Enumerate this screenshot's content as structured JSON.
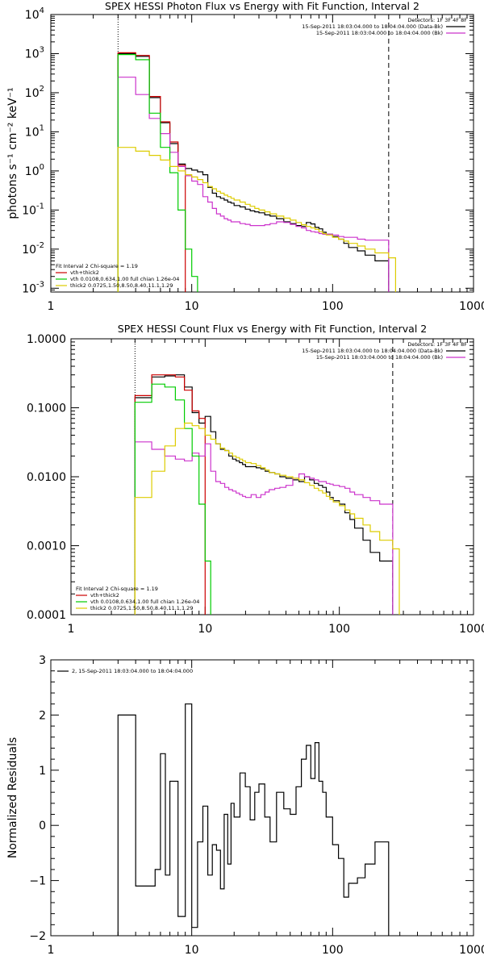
{
  "chart_data": [
    {
      "type": "line",
      "step": true,
      "title": "SPEX HESSI Photon Flux vs Energy with Fit Function, Interval 2",
      "xlabel": "",
      "ylabel": "photons s⁻¹ cm⁻² keV⁻¹",
      "xscale": "log",
      "yscale": "log",
      "xlim": [
        1,
        1000
      ],
      "ylim": [
        0.0008,
        10000
      ],
      "xticks": [
        {
          "v": 1,
          "label": "1"
        },
        {
          "v": 10,
          "label": "10"
        },
        {
          "v": 100,
          "label": "100"
        },
        {
          "v": 1000,
          "label": "1000"
        }
      ],
      "yticks": [
        {
          "v": 0.001,
          "base": "10",
          "exp": "-3"
        },
        {
          "v": 0.01,
          "base": "10",
          "exp": "-2"
        },
        {
          "v": 0.1,
          "base": "10",
          "exp": "-1"
        },
        {
          "v": 1,
          "base": "10",
          "exp": "0"
        },
        {
          "v": 10,
          "base": "10",
          "exp": "1"
        },
        {
          "v": 100,
          "base": "10",
          "exp": "2"
        },
        {
          "v": 1000,
          "base": "10",
          "exp": "3"
        },
        {
          "v": 10000,
          "base": "10",
          "exp": "4"
        }
      ],
      "vlines": [
        {
          "x": 3,
          "style": "dotted"
        },
        {
          "x": 250,
          "style": "dashed"
        }
      ],
      "legend_top_right": [
        {
          "text": "Detectors: 1F 3F 4F 8F",
          "color": ""
        },
        {
          "text": "15-Sep-2011 18:03:04.000 to 18:04:04.000 (Data-Bk)",
          "color": "#000000"
        },
        {
          "text": "15-Sep-2011 18:03:04.000 to 18:04:04.000 (Bk)",
          "color": "#cc33cc"
        }
      ],
      "legend_bottom_left": [
        {
          "text": "Fit Interval 2   Chi-square = 1.19",
          "color": ""
        },
        {
          "text": "vth+thick2",
          "color": "#cc0000"
        },
        {
          "text": "vth 0.0108,0.634,1.00  full chian 1.26e-04",
          "color": "#00cc00"
        },
        {
          "text": "thick2 0.0725,1.50,8.50,8.40,11.1,1.29",
          "color": "#ddcc00"
        }
      ],
      "series": [
        {
          "color": "#000000",
          "edges": [
            3,
            4,
            5,
            6,
            7,
            8,
            9,
            10,
            11,
            12,
            13,
            14,
            15,
            16,
            17,
            18,
            19,
            20,
            22,
            24,
            26,
            28,
            30,
            33,
            36,
            40,
            45,
            50,
            55,
            60,
            65,
            70,
            75,
            80,
            85,
            90,
            100,
            110,
            120,
            130,
            150,
            170,
            200,
            250
          ],
          "values": [
            1000,
            850,
            75,
            17,
            5.0,
            1.5,
            1.15,
            1.05,
            0.95,
            0.8,
            0.38,
            0.27,
            0.22,
            0.2,
            0.18,
            0.16,
            0.15,
            0.13,
            0.12,
            0.105,
            0.095,
            0.09,
            0.085,
            0.075,
            0.07,
            0.06,
            0.05,
            0.045,
            0.04,
            0.038,
            0.048,
            0.044,
            0.036,
            0.033,
            0.027,
            0.024,
            0.021,
            0.018,
            0.014,
            0.011,
            0.009,
            0.007,
            0.005
          ]
        },
        {
          "color": "#cc0000",
          "edges": [
            3,
            4,
            5,
            6,
            7,
            8,
            9
          ],
          "values": [
            1050,
            900,
            80,
            18,
            5.5,
            1.4
          ]
        },
        {
          "color": "#cc33cc",
          "edges": [
            3,
            4,
            5,
            6,
            7,
            8,
            9,
            10,
            11,
            12,
            13,
            14,
            15,
            16,
            17,
            18,
            19,
            20,
            22,
            24,
            26,
            28,
            30,
            33,
            36,
            40,
            45,
            50,
            55,
            60,
            65,
            70,
            75,
            80,
            85,
            90,
            100,
            110,
            120,
            130,
            150,
            170,
            200,
            250
          ],
          "values": [
            250,
            90,
            22,
            9,
            3.0,
            1.3,
            0.75,
            0.55,
            0.45,
            0.22,
            0.16,
            0.11,
            0.08,
            0.07,
            0.06,
            0.055,
            0.05,
            0.05,
            0.045,
            0.043,
            0.04,
            0.04,
            0.04,
            0.042,
            0.045,
            0.05,
            0.048,
            0.043,
            0.038,
            0.035,
            0.03,
            0.028,
            0.027,
            0.025,
            0.024,
            0.024,
            0.023,
            0.021,
            0.02,
            0.02,
            0.018,
            0.017,
            0.017
          ]
        },
        {
          "color": "#00cc00",
          "edges": [
            3,
            4,
            5,
            6,
            7,
            8,
            9,
            10,
            11
          ],
          "values": [
            950,
            700,
            30,
            4.0,
            0.9,
            0.1,
            0.01,
            0.002
          ]
        },
        {
          "color": "#ddcc00",
          "edges": [
            3,
            4,
            5,
            6,
            7,
            8,
            9,
            10,
            11,
            12,
            13,
            14,
            15,
            16,
            17,
            18,
            19,
            20,
            22,
            24,
            26,
            28,
            30,
            33,
            36,
            40,
            45,
            50,
            55,
            60,
            65,
            70,
            75,
            80,
            85,
            90,
            100,
            110,
            120,
            130,
            150,
            170,
            200,
            250,
            280
          ],
          "values": [
            4.0,
            3.2,
            2.5,
            1.9,
            1.3,
            1.0,
            0.8,
            0.7,
            0.6,
            0.5,
            0.4,
            0.35,
            0.3,
            0.27,
            0.24,
            0.22,
            0.2,
            0.18,
            0.16,
            0.14,
            0.125,
            0.11,
            0.1,
            0.09,
            0.08,
            0.07,
            0.062,
            0.055,
            0.048,
            0.042,
            0.038,
            0.035,
            0.032,
            0.028,
            0.025,
            0.023,
            0.02,
            0.018,
            0.016,
            0.014,
            0.012,
            0.01,
            0.008,
            0.006
          ]
        }
      ]
    },
    {
      "type": "line",
      "step": true,
      "title": "SPEX HESSI Count Flux vs Energy with Fit Function, Interval 2",
      "xlabel": "",
      "ylabel": "",
      "xscale": "log",
      "yscale": "log",
      "xlim": [
        1,
        1000
      ],
      "ylim": [
        0.0001,
        1.0
      ],
      "xticks": [
        {
          "v": 1,
          "label": "1"
        },
        {
          "v": 10,
          "label": "10"
        },
        {
          "v": 100,
          "label": "100"
        },
        {
          "v": 1000,
          "label": "1000"
        }
      ],
      "yticks": [
        {
          "v": 0.0001,
          "label": "0.0001"
        },
        {
          "v": 0.001,
          "label": "0.0010"
        },
        {
          "v": 0.01,
          "label": "0.0100"
        },
        {
          "v": 0.1,
          "label": "0.1000"
        },
        {
          "v": 1.0,
          "label": "1.0000"
        }
      ],
      "vlines": [
        {
          "x": 3,
          "style": "dotted"
        },
        {
          "x": 250,
          "style": "dashed"
        }
      ],
      "legend_top_right": [
        {
          "text": "Detectors: 1F 3F 4F 8F",
          "color": ""
        },
        {
          "text": "15-Sep-2011 18:03:04.000 to 18:04:04.000 (Data-Bk)",
          "color": "#000000"
        },
        {
          "text": "15-Sep-2011 18:03:04.000 to 18:04:04.000 (Bk)",
          "color": "#cc33cc"
        }
      ],
      "legend_bottom_left": [
        {
          "text": "Fit Interval 2   Chi-square = 1.19",
          "color": ""
        },
        {
          "text": "vth+thick2",
          "color": "#cc0000"
        },
        {
          "text": "vth 0.0108,0.634,1.00  full chian 1.26e-04",
          "color": "#00cc00"
        },
        {
          "text": "thick2 0.0725,1.50,8.50,8.40,11.1,1.29",
          "color": "#ddcc00"
        }
      ],
      "series": [
        {
          "color": "#000000",
          "edges": [
            3,
            4,
            5,
            6,
            7,
            8,
            9,
            10,
            11,
            12,
            13,
            14,
            15,
            16,
            17,
            18,
            19,
            20,
            22,
            24,
            26,
            28,
            30,
            33,
            36,
            40,
            45,
            50,
            55,
            60,
            65,
            70,
            75,
            80,
            85,
            90,
            100,
            110,
            120,
            130,
            150,
            170,
            200,
            250
          ],
          "values": [
            0.14,
            0.28,
            0.29,
            0.3,
            0.2,
            0.085,
            0.06,
            0.075,
            0.045,
            0.03,
            0.025,
            0.024,
            0.02,
            0.018,
            0.017,
            0.016,
            0.015,
            0.014,
            0.014,
            0.0135,
            0.013,
            0.012,
            0.0115,
            0.011,
            0.01,
            0.0095,
            0.009,
            0.0085,
            0.01,
            0.009,
            0.008,
            0.0075,
            0.007,
            0.006,
            0.005,
            0.0045,
            0.004,
            0.003,
            0.0024,
            0.0018,
            0.0012,
            0.0008,
            0.0006
          ]
        },
        {
          "color": "#cc0000",
          "edges": [
            3,
            4,
            5,
            6,
            7,
            8,
            9,
            10
          ],
          "values": [
            0.15,
            0.3,
            0.3,
            0.28,
            0.18,
            0.09,
            0.07
          ]
        },
        {
          "color": "#cc33cc",
          "edges": [
            3,
            4,
            5,
            6,
            7,
            8,
            9,
            10,
            11,
            12,
            13,
            14,
            15,
            16,
            17,
            18,
            19,
            20,
            22,
            24,
            26,
            28,
            30,
            33,
            36,
            40,
            45,
            50,
            55,
            60,
            65,
            70,
            75,
            80,
            85,
            90,
            100,
            110,
            120,
            130,
            150,
            170,
            200,
            250
          ],
          "values": [
            0.032,
            0.025,
            0.02,
            0.018,
            0.017,
            0.022,
            0.02,
            0.03,
            0.012,
            0.0085,
            0.008,
            0.007,
            0.0065,
            0.0062,
            0.0058,
            0.0055,
            0.0052,
            0.005,
            0.0055,
            0.005,
            0.0055,
            0.006,
            0.0065,
            0.0068,
            0.007,
            0.0075,
            0.0095,
            0.011,
            0.01,
            0.0095,
            0.009,
            0.0085,
            0.0085,
            0.008,
            0.0078,
            0.0075,
            0.0072,
            0.0068,
            0.006,
            0.0055,
            0.005,
            0.0045,
            0.004
          ]
        },
        {
          "color": "#00cc00",
          "edges": [
            3,
            4,
            5,
            6,
            7,
            8,
            9,
            10,
            11,
            12
          ],
          "values": [
            0.12,
            0.22,
            0.2,
            0.13,
            0.05,
            0.02,
            0.004,
            0.0006,
            5e-05
          ]
        },
        {
          "color": "#ddcc00",
          "edges": [
            3,
            4,
            5,
            6,
            7,
            8,
            9,
            10,
            11,
            12,
            13,
            14,
            15,
            16,
            17,
            18,
            19,
            20,
            22,
            24,
            26,
            28,
            30,
            33,
            36,
            40,
            45,
            50,
            55,
            60,
            65,
            70,
            75,
            80,
            85,
            90,
            100,
            110,
            120,
            130,
            150,
            170,
            200,
            250,
            280
          ],
          "values": [
            0.005,
            0.012,
            0.028,
            0.05,
            0.06,
            0.055,
            0.05,
            0.04,
            0.035,
            0.03,
            0.026,
            0.024,
            0.022,
            0.02,
            0.019,
            0.018,
            0.017,
            0.016,
            0.0155,
            0.0145,
            0.0135,
            0.0125,
            0.0115,
            0.011,
            0.0105,
            0.01,
            0.0095,
            0.009,
            0.0082,
            0.0075,
            0.0068,
            0.0063,
            0.0058,
            0.0052,
            0.0047,
            0.0043,
            0.0038,
            0.0033,
            0.0029,
            0.0025,
            0.002,
            0.0016,
            0.0012,
            0.0009
          ]
        }
      ]
    },
    {
      "type": "line",
      "step": true,
      "title": "",
      "xlabel": "",
      "ylabel": "Normalized Residuals",
      "xscale": "log",
      "yscale": "linear",
      "xlim": [
        1,
        1000
      ],
      "ylim": [
        -2,
        3
      ],
      "xticks": [
        {
          "v": 1,
          "label": "1"
        },
        {
          "v": 10,
          "label": "10"
        },
        {
          "v": 100,
          "label": "100"
        },
        {
          "v": 1000,
          "label": "1000"
        }
      ],
      "yticks": [
        {
          "v": -2,
          "label": "−2"
        },
        {
          "v": -1,
          "label": "−1"
        },
        {
          "v": 0,
          "label": "0"
        },
        {
          "v": 1,
          "label": "1"
        },
        {
          "v": 2,
          "label": "2"
        },
        {
          "v": 3,
          "label": "3"
        }
      ],
      "vlines": [],
      "legend_top_left": [
        {
          "text": "2, 15-Sep-2011 18:03:04.000 to 18:04:04.000",
          "color": "#000000"
        }
      ],
      "series": [
        {
          "color": "#000000",
          "baseline": -2,
          "edges": [
            3,
            4,
            5,
            5.5,
            6,
            6.5,
            7,
            8,
            9,
            10,
            11,
            12,
            13,
            14,
            15,
            16,
            17,
            18,
            19,
            20,
            22,
            24,
            26,
            28,
            30,
            33,
            36,
            40,
            45,
            50,
            55,
            60,
            65,
            70,
            75,
            80,
            85,
            90,
            100,
            110,
            120,
            130,
            150,
            170,
            200,
            250
          ],
          "values": [
            2.0,
            -1.1,
            -1.1,
            -0.8,
            1.3,
            -0.9,
            0.8,
            -1.65,
            2.2,
            -1.85,
            -0.3,
            0.35,
            -0.9,
            -0.35,
            -0.45,
            -1.15,
            0.2,
            -0.7,
            0.4,
            0.15,
            0.95,
            0.7,
            0.1,
            0.6,
            0.75,
            0.15,
            -0.3,
            0.6,
            0.3,
            0.2,
            0.7,
            1.2,
            1.45,
            0.85,
            1.5,
            0.8,
            0.6,
            0.15,
            -0.35,
            -0.6,
            -1.3,
            -1.05,
            -0.95,
            -0.7,
            -0.3
          ]
        }
      ]
    }
  ]
}
